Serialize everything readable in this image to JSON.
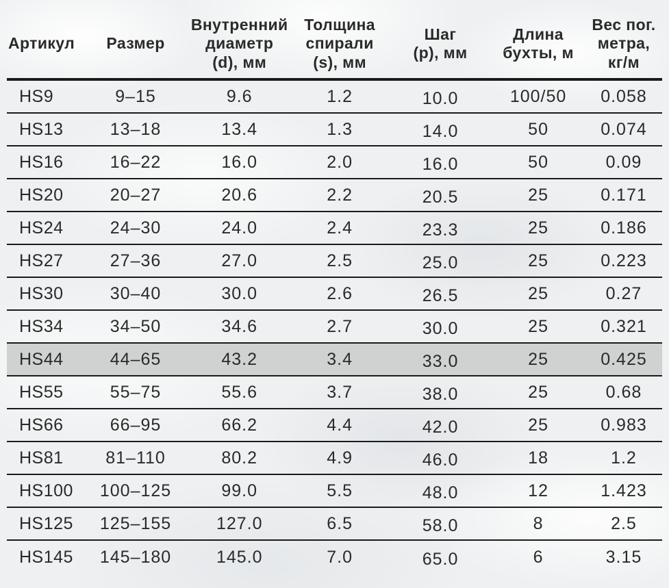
{
  "styles": {
    "background_color": "#eef0f1",
    "highlight_color": "#d0d1d1",
    "line_color": "#1a1a1a",
    "text_color": "#2a2a2a"
  },
  "chart_data": {
    "type": "table",
    "title": "",
    "legend": null,
    "grid": "horizontal-rules-only",
    "highlighted_row_article": "HS44",
    "columns": [
      {
        "key": "article",
        "label": "Артикул"
      },
      {
        "key": "size",
        "label": "Размер"
      },
      {
        "key": "inner_diameter",
        "label": "Внутренний\nдиаметр\n(d), мм"
      },
      {
        "key": "spiral_thickness",
        "label": "Толщина\nспирали\n(s), мм"
      },
      {
        "key": "step",
        "label": "Шаг\n(p), мм"
      },
      {
        "key": "coil_length",
        "label": "Длина\nбухты, м"
      },
      {
        "key": "weight",
        "label": "Вес пог.\nметра,\nкг/м"
      }
    ],
    "rows": [
      {
        "article": "HS9",
        "size": "9–15",
        "inner_diameter": "9.6",
        "spiral_thickness": "1.2",
        "step": "10.0",
        "coil_length": "100/50",
        "weight": "0.058"
      },
      {
        "article": "HS13",
        "size": "13–18",
        "inner_diameter": "13.4",
        "spiral_thickness": "1.3",
        "step": "14.0",
        "coil_length": "50",
        "weight": "0.074"
      },
      {
        "article": "HS16",
        "size": "16–22",
        "inner_diameter": "16.0",
        "spiral_thickness": "2.0",
        "step": "16.0",
        "coil_length": "50",
        "weight": "0.09"
      },
      {
        "article": "HS20",
        "size": "20–27",
        "inner_diameter": "20.6",
        "spiral_thickness": "2.2",
        "step": "20.5",
        "coil_length": "25",
        "weight": "0.171"
      },
      {
        "article": "HS24",
        "size": "24–30",
        "inner_diameter": "24.0",
        "spiral_thickness": "2.4",
        "step": "23.3",
        "coil_length": "25",
        "weight": "0.186"
      },
      {
        "article": "HS27",
        "size": "27–36",
        "inner_diameter": "27.0",
        "spiral_thickness": "2.5",
        "step": "25.0",
        "coil_length": "25",
        "weight": "0.223"
      },
      {
        "article": "HS30",
        "size": "30–40",
        "inner_diameter": "30.0",
        "spiral_thickness": "2.6",
        "step": "26.5",
        "coil_length": "25",
        "weight": "0.27"
      },
      {
        "article": "HS34",
        "size": "34–50",
        "inner_diameter": "34.6",
        "spiral_thickness": "2.7",
        "step": "30.0",
        "coil_length": "25",
        "weight": "0.321"
      },
      {
        "article": "HS44",
        "size": "44–65",
        "inner_diameter": "43.2",
        "spiral_thickness": "3.4",
        "step": "33.0",
        "coil_length": "25",
        "weight": "0.425"
      },
      {
        "article": "HS55",
        "size": "55–75",
        "inner_diameter": "55.6",
        "spiral_thickness": "3.7",
        "step": "38.0",
        "coil_length": "25",
        "weight": "0.68"
      },
      {
        "article": "HS66",
        "size": "66–95",
        "inner_diameter": "66.2",
        "spiral_thickness": "4.4",
        "step": "42.0",
        "coil_length": "25",
        "weight": "0.983"
      },
      {
        "article": "HS81",
        "size": "81–110",
        "inner_diameter": "80.2",
        "spiral_thickness": "4.9",
        "step": "46.0",
        "coil_length": "18",
        "weight": "1.2"
      },
      {
        "article": "HS100",
        "size": "100–125",
        "inner_diameter": "99.0",
        "spiral_thickness": "5.5",
        "step": "48.0",
        "coil_length": "12",
        "weight": "1.423"
      },
      {
        "article": "HS125",
        "size": "125–155",
        "inner_diameter": "127.0",
        "spiral_thickness": "6.5",
        "step": "58.0",
        "coil_length": "8",
        "weight": "2.5"
      },
      {
        "article": "HS145",
        "size": "145–180",
        "inner_diameter": "145.0",
        "spiral_thickness": "7.0",
        "step": "65.0",
        "coil_length": "6",
        "weight": "3.15"
      }
    ]
  }
}
